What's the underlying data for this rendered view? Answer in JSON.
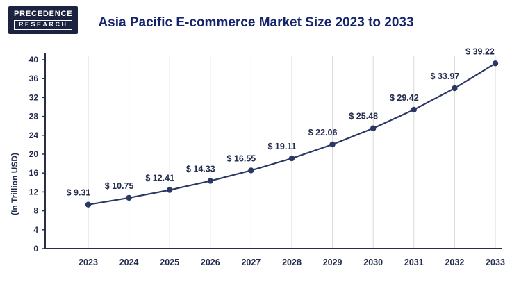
{
  "header": {
    "logo_line1": "PRECEDENCE",
    "logo_line2": "RESEARCH",
    "title": "Asia Pacific E-commerce Market Size 2023 to 2033"
  },
  "chart_data": {
    "type": "line",
    "title": "Asia Pacific E-commerce Market Size 2023 to 2033",
    "categories": [
      "2023",
      "2024",
      "2025",
      "2026",
      "2027",
      "2028",
      "2029",
      "2030",
      "2031",
      "2032",
      "2033"
    ],
    "values": [
      9.31,
      10.75,
      12.41,
      14.33,
      16.55,
      19.11,
      22.06,
      25.48,
      29.42,
      33.97,
      39.22
    ],
    "point_labels": [
      "$ 9.31",
      "$ 10.75",
      "$ 12.41",
      "$ 14.33",
      "$ 16.55",
      "$ 19.11",
      "$ 22.06",
      "$ 25.48",
      "$ 29.42",
      "$ 33.97",
      "$ 39.22"
    ],
    "xlabel": "",
    "ylabel": "(In Trillion USD)",
    "ylim": [
      0,
      40
    ],
    "yticks": [
      0,
      4,
      8,
      12,
      16,
      20,
      24,
      28,
      32,
      36,
      40
    ],
    "grid": "vertical",
    "legend": "none",
    "colors": {
      "line": "#2b3864",
      "marker": "#2b3864",
      "grid": "#d9d9d9",
      "axis": "#2a2f45",
      "tick_text": "#232c4e",
      "value_label": "#232c4e"
    }
  }
}
